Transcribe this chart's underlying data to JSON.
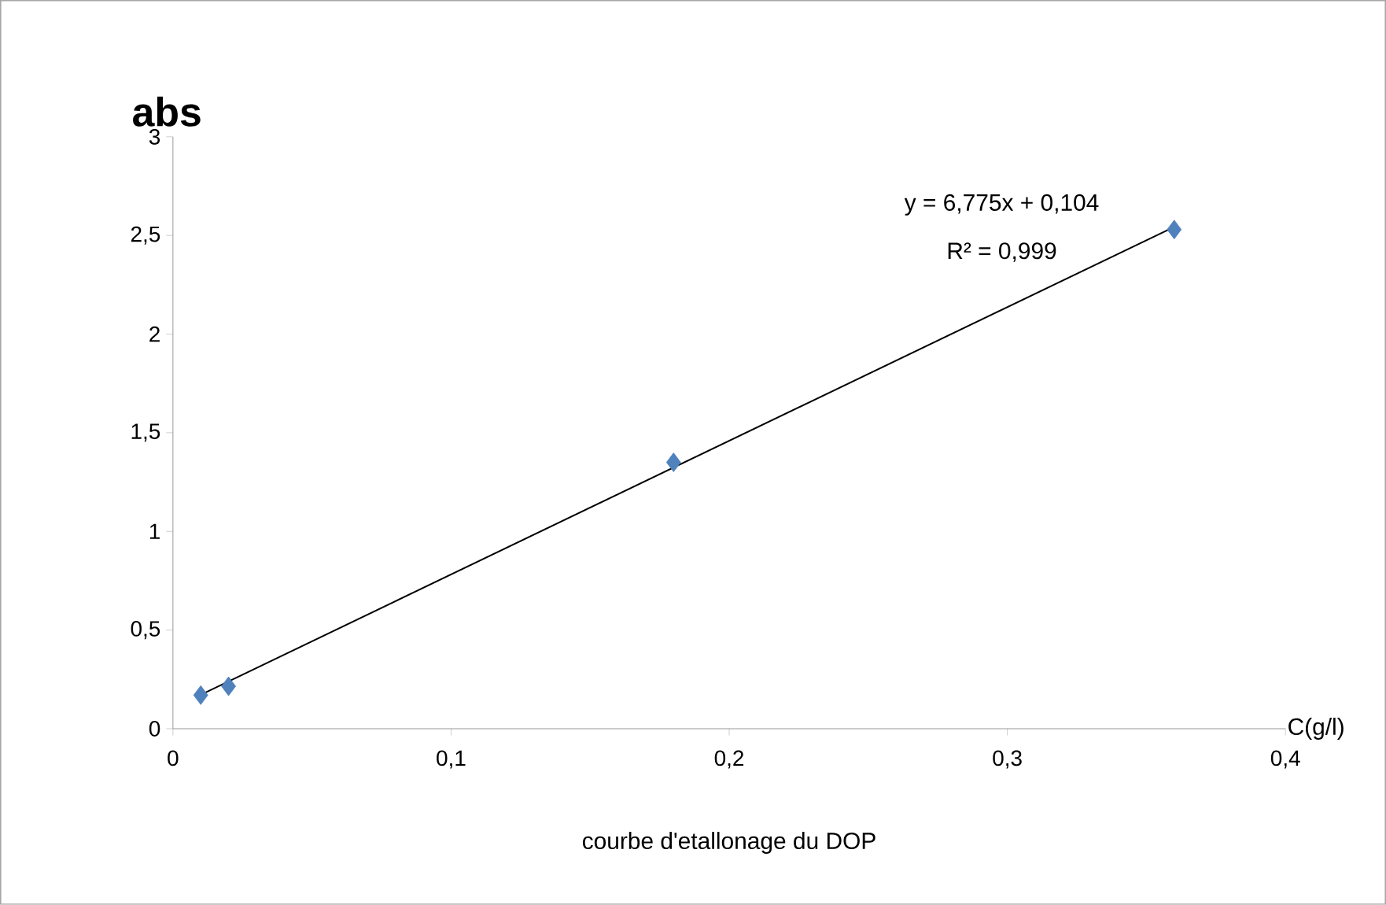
{
  "chart_data": {
    "type": "scatter",
    "title": "courbe d'etallonage du DOP",
    "xlabel": "C(g/l)",
    "ylabel": "abs",
    "annotations": [
      "y = 6,775x + 0,104",
      "R² = 0,999"
    ],
    "marker": "diamond",
    "xlim": [
      0,
      0.4
    ],
    "ylim": [
      0,
      3
    ],
    "xticks": [
      0,
      {
        "value": 0.1,
        "label": "0,1"
      },
      {
        "value": 0.2,
        "label": "0,2"
      },
      {
        "value": 0.3,
        "label": "0,3"
      },
      {
        "value": 0.4,
        "label": "0,4"
      }
    ],
    "yticks": [
      0,
      {
        "value": 0.5,
        "label": "0,5"
      },
      1,
      {
        "value": 1.5,
        "label": "1,5"
      },
      2,
      {
        "value": 2.5,
        "label": "2,5"
      },
      3
    ],
    "series": [
      {
        "color": "#4f81bd",
        "x": [
          0.01,
          0.02,
          0.18,
          0.36
        ],
        "values": [
          0.17,
          0.215,
          1.35,
          2.53
        ]
      },
      {
        "type": "line",
        "color": "#000000",
        "marker": "none",
        "x": [
          0.01,
          0.36
        ],
        "values": [
          0.172,
          2.543
        ]
      }
    ]
  }
}
